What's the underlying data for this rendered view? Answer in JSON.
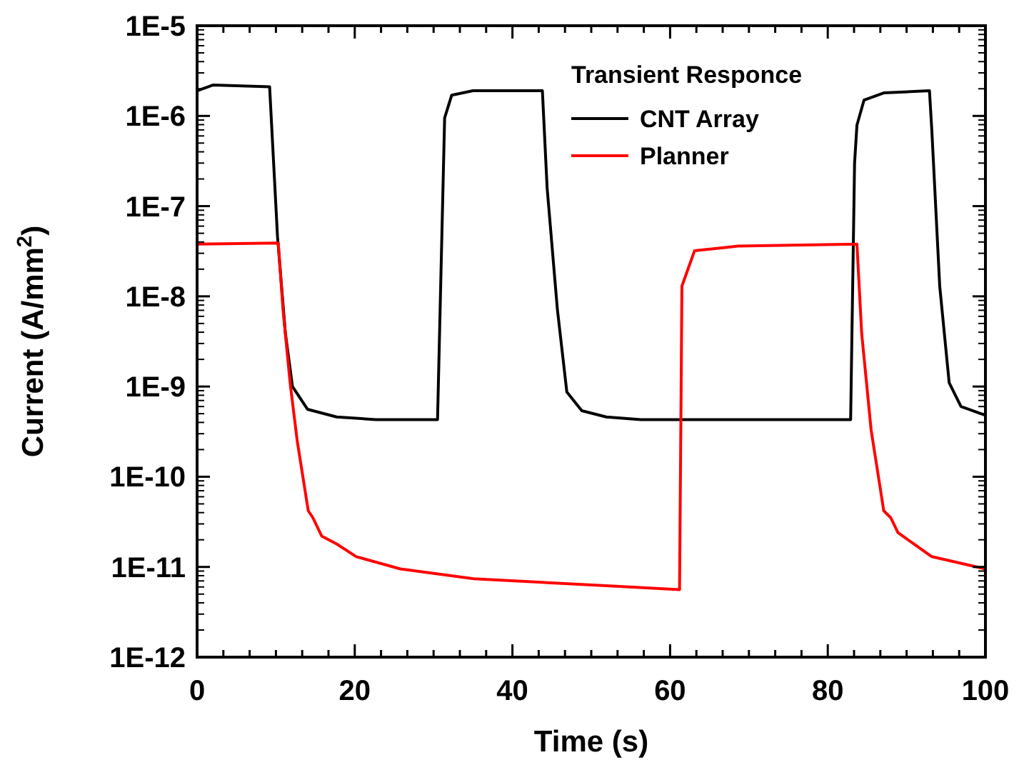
{
  "chart_data": {
    "type": "line",
    "xlabel": "Time (s)",
    "ylabel": "Current (A/mm$^{2}$)",
    "legend_title": "Transient Responce",
    "legend": "top right",
    "log": true,
    "grid": false,
    "marker": "none",
    "line_style": "solid",
    "xlim": [
      0,
      100
    ],
    "xticks": [
      0,
      {
        "value": 3.333,
        "label": null
      },
      {
        "value": 6.667,
        "label": null
      },
      {
        "value": 10,
        "label": null
      },
      {
        "value": 13.333,
        "label": null
      },
      {
        "value": 16.667,
        "label": null
      },
      20,
      {
        "value": 23.333,
        "label": null
      },
      {
        "value": 26.667,
        "label": null
      },
      {
        "value": 30,
        "label": null
      },
      {
        "value": 33.333,
        "label": null
      },
      {
        "value": 36.667,
        "label": null
      },
      40,
      {
        "value": 43.333,
        "label": null
      },
      {
        "value": 46.667,
        "label": null
      },
      {
        "value": 50,
        "label": null
      },
      {
        "value": 53.333,
        "label": null
      },
      {
        "value": 56.667,
        "label": null
      },
      60,
      {
        "value": 63.333,
        "label": null
      },
      {
        "value": 66.667,
        "label": null
      },
      {
        "value": 70,
        "label": null
      },
      {
        "value": 73.333,
        "label": null
      },
      {
        "value": 76.667,
        "label": null
      },
      80,
      {
        "value": 83.333,
        "label": null
      },
      {
        "value": 86.667,
        "label": null
      },
      {
        "value": 90,
        "label": null
      },
      {
        "value": 93.333,
        "label": null
      },
      {
        "value": 96.667,
        "label": null
      },
      100
    ],
    "ylim": [
      1e-12,
      1e-05
    ],
    "yticks": [
      {
        "value": 1e-12,
        "label": "1E-12"
      },
      {
        "value": 1e-11,
        "label": "1E-11"
      },
      {
        "value": 1e-10,
        "label": "1E-10"
      },
      {
        "value": 1e-09,
        "label": "1E-9"
      },
      {
        "value": 1e-08,
        "label": "1E-8"
      },
      {
        "value": 1e-07,
        "label": "1E-7"
      },
      {
        "value": 1e-06,
        "label": "1E-6"
      },
      {
        "value": 1e-05,
        "label": "1E-5"
      }
    ],
    "series": [
      {
        "name": "CNT Array",
        "color": "#000000",
        "x": [
          0,
          2,
          9.2,
          10.2,
          11.2,
          12.1,
          14,
          17.7,
          22.7,
          30.5,
          31.4,
          32.3,
          35,
          43.8,
          44.4,
          45.7,
          46.9,
          48.8,
          51.9,
          56.3,
          82.9,
          83.4,
          83.7,
          84.6,
          87.1,
          92.9,
          93.2,
          94.2,
          95.4,
          96.9,
          100
        ],
        "values": [
          1.9e-06,
          2.2e-06,
          2.1e-06,
          4.6e-08,
          3.9e-09,
          1e-09,
          5.6e-10,
          4.6e-10,
          4.3e-10,
          4.3e-10,
          9.5e-07,
          1.7e-06,
          1.9e-06,
          1.9e-06,
          1.6e-07,
          7.2e-09,
          8.7e-10,
          5.4e-10,
          4.6e-10,
          4.3e-10,
          4.3e-10,
          3e-07,
          7.9e-07,
          1.5e-06,
          1.8e-06,
          1.9e-06,
          6.9e-07,
          1.3e-08,
          1.1e-09,
          6e-10,
          4.8e-10
        ]
      },
      {
        "name": "Planner",
        "color": "#ff0000",
        "x": [
          0,
          10.3,
          10.9,
          11.8,
          12.7,
          14.1,
          14.7,
          15.8,
          17.7,
          20.2,
          25.8,
          35.1,
          51.9,
          61.2,
          61.5,
          63.1,
          68.6,
          83.7,
          84.3,
          85.5,
          87.1,
          88,
          88.9,
          93.2,
          100
        ],
        "values": [
          3.8e-08,
          3.9e-08,
          7.1e-09,
          1.1e-09,
          2.5e-10,
          4.2e-11,
          3.5e-11,
          2.2e-11,
          1.8e-11,
          1.3e-11,
          9.5e-12,
          7.4e-12,
          6.2e-12,
          5.6e-12,
          1.3e-08,
          3.2e-08,
          3.6e-08,
          3.8e-08,
          3.9e-09,
          3.3e-10,
          4.2e-11,
          3.5e-11,
          2.4e-11,
          1.3e-11,
          9.5e-12
        ]
      }
    ]
  }
}
